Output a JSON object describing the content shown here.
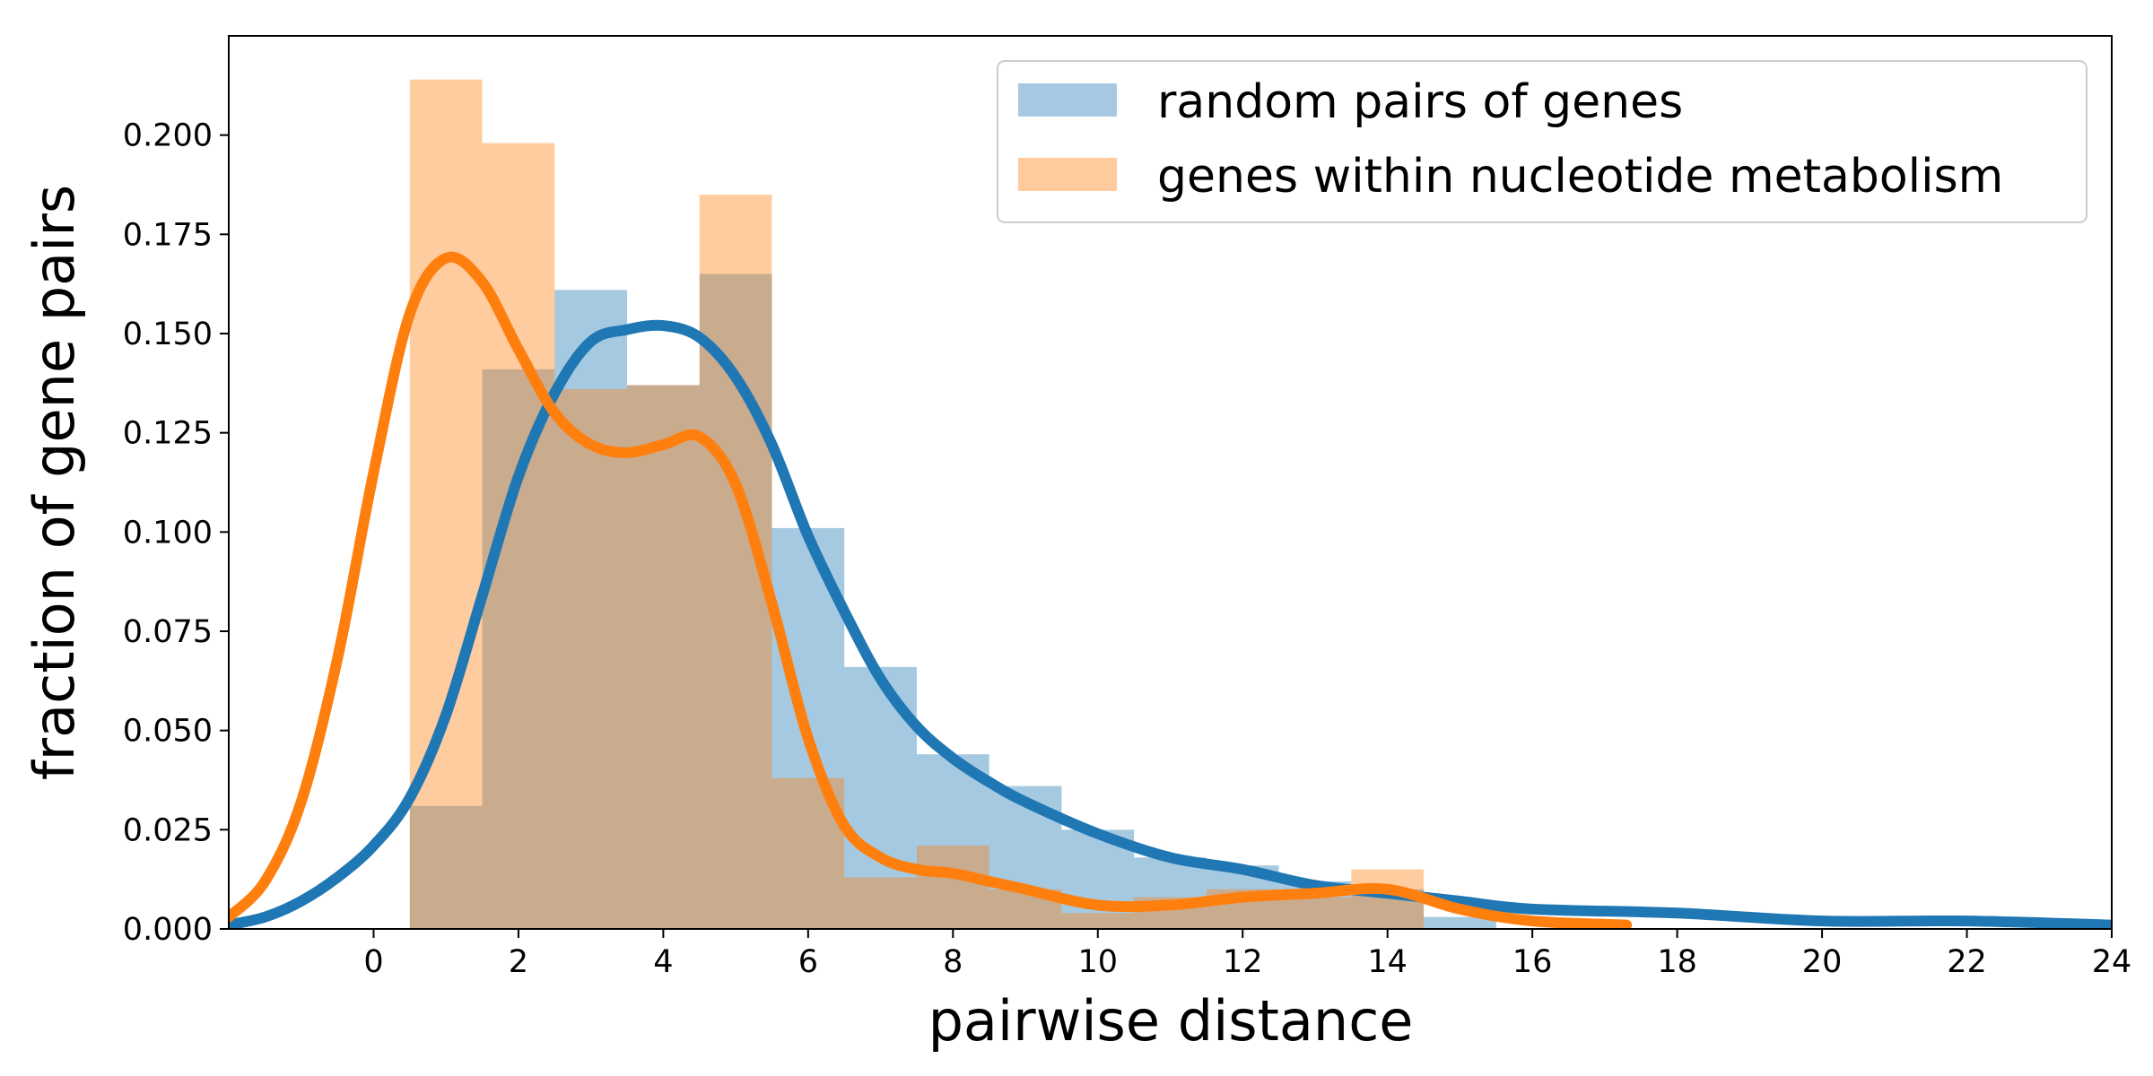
{
  "chart_data": {
    "type": "bar",
    "title": "",
    "xlabel": "pairwise distance",
    "ylabel": "fraction of gene pairs",
    "xlim": [
      -2,
      24
    ],
    "ylim": [
      0,
      0.225
    ],
    "xticks": [
      "0",
      "2",
      "4",
      "6",
      "8",
      "10",
      "12",
      "14",
      "16",
      "18",
      "20",
      "22",
      "24"
    ],
    "xtick_values": [
      0,
      2,
      4,
      6,
      8,
      10,
      12,
      14,
      16,
      18,
      20,
      22,
      24
    ],
    "yticks": [
      "0.000",
      "0.025",
      "0.050",
      "0.075",
      "0.100",
      "0.125",
      "0.150",
      "0.175",
      "0.200"
    ],
    "ytick_values": [
      0,
      0.025,
      0.05,
      0.075,
      0.1,
      0.125,
      0.15,
      0.175,
      0.2
    ],
    "grid": false,
    "legend": "top-right",
    "bin_edges": [
      0.5,
      1.5,
      2.5,
      3.5,
      4.5,
      5.5,
      6.5,
      7.5,
      8.5,
      9.5,
      10.5,
      11.5,
      12.5,
      13.5,
      14.5,
      15.5
    ],
    "series": [
      {
        "name": "random pairs of genes",
        "color": "#1f77b4",
        "bar_color": "#a6c8e2",
        "values": [
          0.031,
          0.141,
          0.161,
          0.137,
          0.165,
          0.101,
          0.066,
          0.044,
          0.036,
          0.025,
          0.018,
          0.016,
          0.012,
          0.01,
          0.003
        ],
        "kde_x": [
          -2.0,
          -1.5,
          -1.0,
          -0.5,
          0.0,
          0.5,
          1.0,
          1.5,
          2.0,
          2.5,
          3.0,
          3.5,
          4.0,
          4.5,
          5.0,
          5.5,
          6.0,
          6.5,
          7.0,
          7.5,
          8.0,
          8.5,
          9.0,
          10.0,
          11.0,
          12.0,
          13.0,
          14.0,
          15.0,
          16.0,
          18.0,
          20.0,
          22.0,
          24.0
        ],
        "kde_y": [
          0.001,
          0.003,
          0.007,
          0.013,
          0.021,
          0.033,
          0.054,
          0.084,
          0.114,
          0.135,
          0.148,
          0.151,
          0.152,
          0.149,
          0.139,
          0.122,
          0.099,
          0.08,
          0.063,
          0.051,
          0.043,
          0.037,
          0.032,
          0.024,
          0.018,
          0.015,
          0.011,
          0.009,
          0.007,
          0.005,
          0.004,
          0.002,
          0.002,
          0.001
        ]
      },
      {
        "name": "genes within nucleotide metabolism",
        "color": "#ff7f0e",
        "bar_color": "#ffcb9e",
        "values": [
          0.214,
          0.198,
          0.136,
          0.137,
          0.185,
          0.038,
          0.013,
          0.021,
          0.01,
          0.004,
          0.008,
          0.01,
          0.008,
          0.015,
          0.0
        ],
        "kde_x": [
          -2.0,
          -1.5,
          -1.0,
          -0.5,
          0.0,
          0.5,
          1.0,
          1.5,
          2.0,
          2.5,
          3.0,
          3.5,
          4.0,
          4.5,
          5.0,
          5.5,
          6.0,
          6.5,
          7.0,
          7.5,
          8.0,
          8.5,
          9.0,
          10.0,
          11.0,
          12.0,
          13.0,
          14.0,
          15.0,
          16.0,
          17.3
        ],
        "kde_y": [
          0.003,
          0.012,
          0.032,
          0.068,
          0.115,
          0.155,
          0.169,
          0.163,
          0.146,
          0.13,
          0.122,
          0.12,
          0.122,
          0.124,
          0.112,
          0.082,
          0.048,
          0.026,
          0.018,
          0.015,
          0.014,
          0.012,
          0.01,
          0.006,
          0.006,
          0.008,
          0.009,
          0.01,
          0.005,
          0.002,
          0.001
        ]
      }
    ]
  }
}
